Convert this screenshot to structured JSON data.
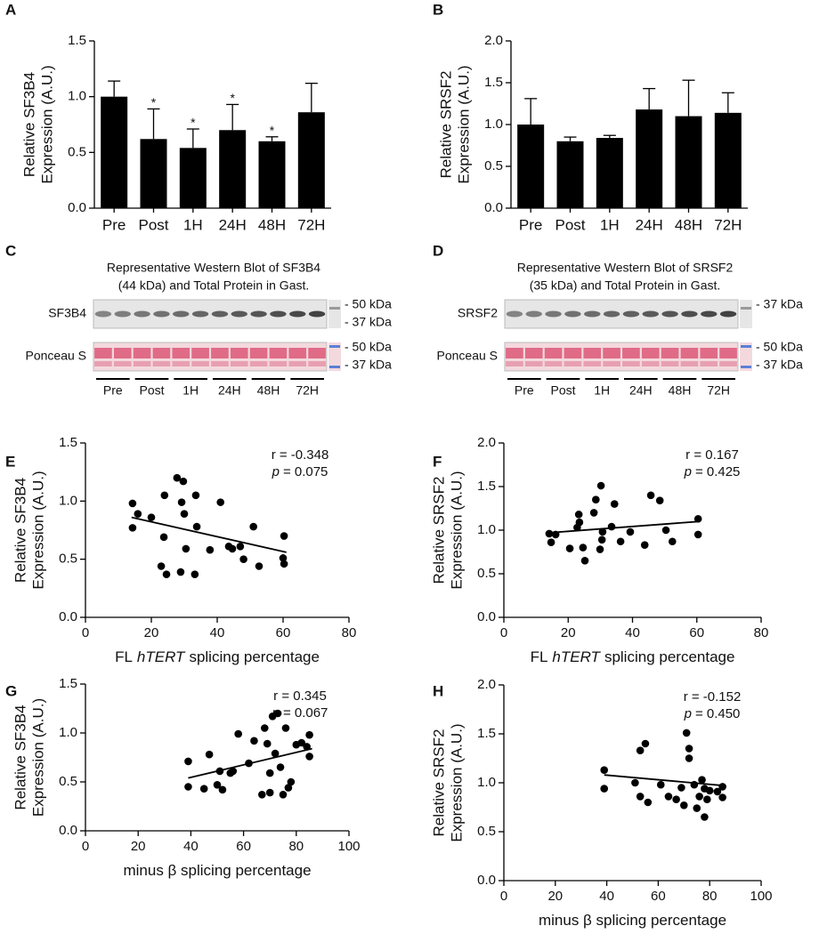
{
  "chart_data": [
    {
      "type": "bar",
      "panel": "A",
      "ylabel": [
        "Relative SF3B4",
        "Expression (A.U.)"
      ],
      "categories": [
        "Pre",
        "Post",
        "1H",
        "24H",
        "48H",
        "72H"
      ],
      "values": [
        1.0,
        0.62,
        0.54,
        0.7,
        0.6,
        0.86
      ],
      "errors": [
        0.14,
        0.27,
        0.17,
        0.23,
        0.04,
        0.26
      ],
      "markers": [
        null,
        "*",
        "*",
        "*",
        "*",
        null
      ],
      "color": "#000000",
      "ylim": [
        0,
        1.5
      ],
      "yticks": [
        {
          "value": 0,
          "label": "0.0"
        },
        0.5,
        {
          "value": 1,
          "label": "1.0"
        },
        1.5
      ]
    },
    {
      "type": "bar",
      "panel": "B",
      "ylabel": [
        "Relative SRSF2",
        "Expression (A.U.)"
      ],
      "categories": [
        "Pre",
        "Post",
        "1H",
        "24H",
        "48H",
        "72H"
      ],
      "values": [
        1.0,
        0.8,
        0.84,
        1.18,
        1.1,
        1.14
      ],
      "errors": [
        0.31,
        0.05,
        0.03,
        0.25,
        0.43,
        0.24
      ],
      "color": "#000000",
      "ylim": [
        0,
        2
      ],
      "yticks": [
        {
          "value": 0,
          "label": "0.0"
        },
        0.5,
        {
          "value": 1,
          "label": "1.0"
        },
        1.5,
        {
          "value": 2,
          "label": "2.0"
        }
      ]
    },
    {
      "type": "blot",
      "panel": "C",
      "title": [
        "Representative Western Blot of SF3B4",
        "(44 kDa) and Total Protein in Gast."
      ],
      "rows": [
        {
          "label": "SF3B4",
          "markers": [
            "- 50 kDa",
            "- 37 kDa"
          ]
        },
        {
          "label": "Ponceau S",
          "markers": [
            "- 50 kDa",
            "- 37 kDa"
          ]
        }
      ],
      "groups": [
        "Pre",
        "Post",
        "1H",
        "24H",
        "48H",
        "72H"
      ]
    },
    {
      "type": "blot",
      "panel": "D",
      "title": [
        "Representative Western Blot of SRSF2",
        "(35 kDa) and Total Protein in Gast."
      ],
      "rows": [
        {
          "label": "SRSF2",
          "markers": [
            "- 37 kDa"
          ]
        },
        {
          "label": "Ponceau S",
          "markers": [
            "- 50 kDa",
            "- 37 kDa"
          ]
        }
      ],
      "groups": [
        "Pre",
        "Post",
        "1H",
        "24H",
        "48H",
        "72H"
      ]
    },
    {
      "type": "scatter",
      "panel": "E",
      "ylabel": [
        "Relative SF3B4",
        "Expression (A.U.)"
      ],
      "xlabel": [
        "FL",
        "hTERT",
        "splicing percentage"
      ],
      "xlabel_italic": [
        false,
        true,
        false
      ],
      "annotation": {
        "r": "r = -0.348",
        "p": "p",
        "p_value": "= 0.075"
      },
      "x": [
        14.3,
        14.3,
        15.9,
        20,
        23,
        24,
        23.8,
        24.6,
        27.8,
        29.7,
        29.2,
        28.9,
        30.5,
        30,
        33.5,
        33.2,
        33.8,
        37.8,
        41,
        43.5,
        44.6,
        47,
        51,
        52.7,
        48,
        60,
        60.3,
        60.3
      ],
      "values": [
        0.98,
        0.77,
        0.89,
        0.86,
        0.44,
        1.05,
        0.69,
        0.37,
        1.2,
        1.17,
        0.99,
        0.39,
        0.59,
        0.89,
        1.05,
        0.37,
        0.78,
        0.58,
        0.99,
        0.61,
        0.59,
        0.61,
        0.78,
        0.44,
        0.5,
        0.51,
        0.46,
        0.7
      ],
      "fit": {
        "x": [
          14,
          61
        ],
        "values": [
          0.86,
          0.56
        ]
      },
      "color": "#000000",
      "xlim": [
        0,
        80
      ],
      "xticks": [
        0,
        20,
        40,
        60,
        80
      ],
      "ylim": [
        0,
        1.5
      ],
      "yticks": [
        {
          "value": 0,
          "label": "0.0"
        },
        0.5,
        {
          "value": 1,
          "label": "1.0"
        },
        1.5
      ]
    },
    {
      "type": "scatter",
      "panel": "F",
      "ylabel": [
        "Relative SRSF2",
        "Expression (A.U.)"
      ],
      "xlabel": [
        "FL",
        "hTERT",
        "splicing percentage"
      ],
      "xlabel_italic": [
        false,
        true,
        false
      ],
      "annotation": {
        "r": "r = 0.167",
        "p": "p",
        "p_value": "= 0.425"
      },
      "x": [
        14.1,
        14.7,
        16.1,
        20.5,
        22.8,
        23.5,
        23.3,
        25.2,
        24.6,
        28,
        28.6,
        30.2,
        30.5,
        30.7,
        29.9,
        33.5,
        34.4,
        36.3,
        39.3,
        45.7,
        48.5,
        43.8,
        50.4,
        52.4,
        60.4,
        60.4
      ],
      "values": [
        0.96,
        0.86,
        0.95,
        0.79,
        1.03,
        1.09,
        1.18,
        0.65,
        0.8,
        1.2,
        1.35,
        1.51,
        0.89,
        0.98,
        0.78,
        1.04,
        1.3,
        0.87,
        0.98,
        1.4,
        1.34,
        0.83,
        1.0,
        0.87,
        1.13,
        0.95
      ],
      "fit": {
        "x": [
          14,
          61
        ],
        "values": [
          0.97,
          1.1
        ]
      },
      "color": "#000000",
      "xlim": [
        0,
        80
      ],
      "xticks": [
        0,
        20,
        40,
        60,
        80
      ],
      "ylim": [
        0,
        2
      ],
      "yticks": [
        {
          "value": 0,
          "label": "0.0"
        },
        0.5,
        {
          "value": 1,
          "label": "1.0"
        },
        1.5,
        {
          "value": 2,
          "label": "2.0"
        }
      ]
    },
    {
      "type": "scatter",
      "panel": "G",
      "ylabel": [
        "Relative SF3B4",
        "Expression (A.U.)"
      ],
      "xlabel": [
        "minus β splicing percentage"
      ],
      "xlabel_italic": [
        false
      ],
      "annotation": {
        "r": "r = 0.345",
        "p": "p",
        "p_value": "= 0.067"
      },
      "x": [
        39,
        39,
        45,
        47,
        50,
        51,
        52,
        55,
        56,
        58,
        62,
        64,
        67,
        68,
        69,
        70,
        70,
        71,
        72,
        73,
        74,
        75,
        76,
        77,
        78,
        80,
        82,
        84,
        85,
        85
      ],
      "values": [
        0.71,
        0.45,
        0.43,
        0.78,
        0.47,
        0.61,
        0.42,
        0.59,
        0.61,
        0.99,
        0.69,
        0.92,
        0.37,
        1.05,
        0.89,
        0.59,
        0.39,
        1.17,
        0.79,
        1.2,
        0.65,
        0.37,
        1.05,
        0.44,
        0.5,
        0.88,
        0.9,
        0.86,
        0.98,
        0.76
      ],
      "fit": {
        "x": [
          39,
          86
        ],
        "values": [
          0.54,
          0.84
        ]
      },
      "color": "#000000",
      "xlim": [
        0,
        100
      ],
      "xticks": [
        0,
        20,
        40,
        60,
        80,
        100
      ],
      "ylim": [
        0,
        1.5
      ],
      "yticks": [
        {
          "value": 0,
          "label": "0.0"
        },
        0.5,
        {
          "value": 1,
          "label": "1.0"
        },
        1.5
      ]
    },
    {
      "type": "scatter",
      "panel": "H",
      "ylabel": [
        "Relative SRSF2",
        "Expression (A.U.)"
      ],
      "xlabel": [
        "minus β splicing percentage"
      ],
      "xlabel_italic": [
        false
      ],
      "annotation": {
        "r": "r = -0.152",
        "p": "p",
        "p_value": "= 0.450"
      },
      "x": [
        39,
        39,
        51,
        53,
        53,
        55,
        56,
        61,
        64,
        67,
        69,
        70,
        71,
        72,
        72,
        74,
        75,
        76,
        77,
        78,
        78,
        79,
        80,
        83,
        85,
        85
      ],
      "values": [
        1.13,
        0.94,
        1.0,
        0.86,
        1.33,
        1.4,
        0.8,
        0.98,
        0.86,
        0.83,
        0.95,
        0.77,
        1.51,
        1.35,
        1.25,
        0.98,
        0.74,
        0.86,
        1.03,
        0.65,
        0.94,
        0.83,
        0.92,
        0.91,
        0.96,
        0.85
      ],
      "fit": {
        "x": [
          39,
          86
        ],
        "values": [
          1.08,
          0.97
        ]
      },
      "color": "#000000",
      "xlim": [
        0,
        100
      ],
      "xticks": [
        0,
        20,
        40,
        60,
        80,
        100
      ],
      "ylim": [
        0,
        2
      ],
      "yticks": [
        {
          "value": 0,
          "label": "0.0"
        },
        0.5,
        {
          "value": 1,
          "label": "1.0"
        },
        1.5,
        {
          "value": 2,
          "label": "2.0"
        }
      ]
    }
  ]
}
